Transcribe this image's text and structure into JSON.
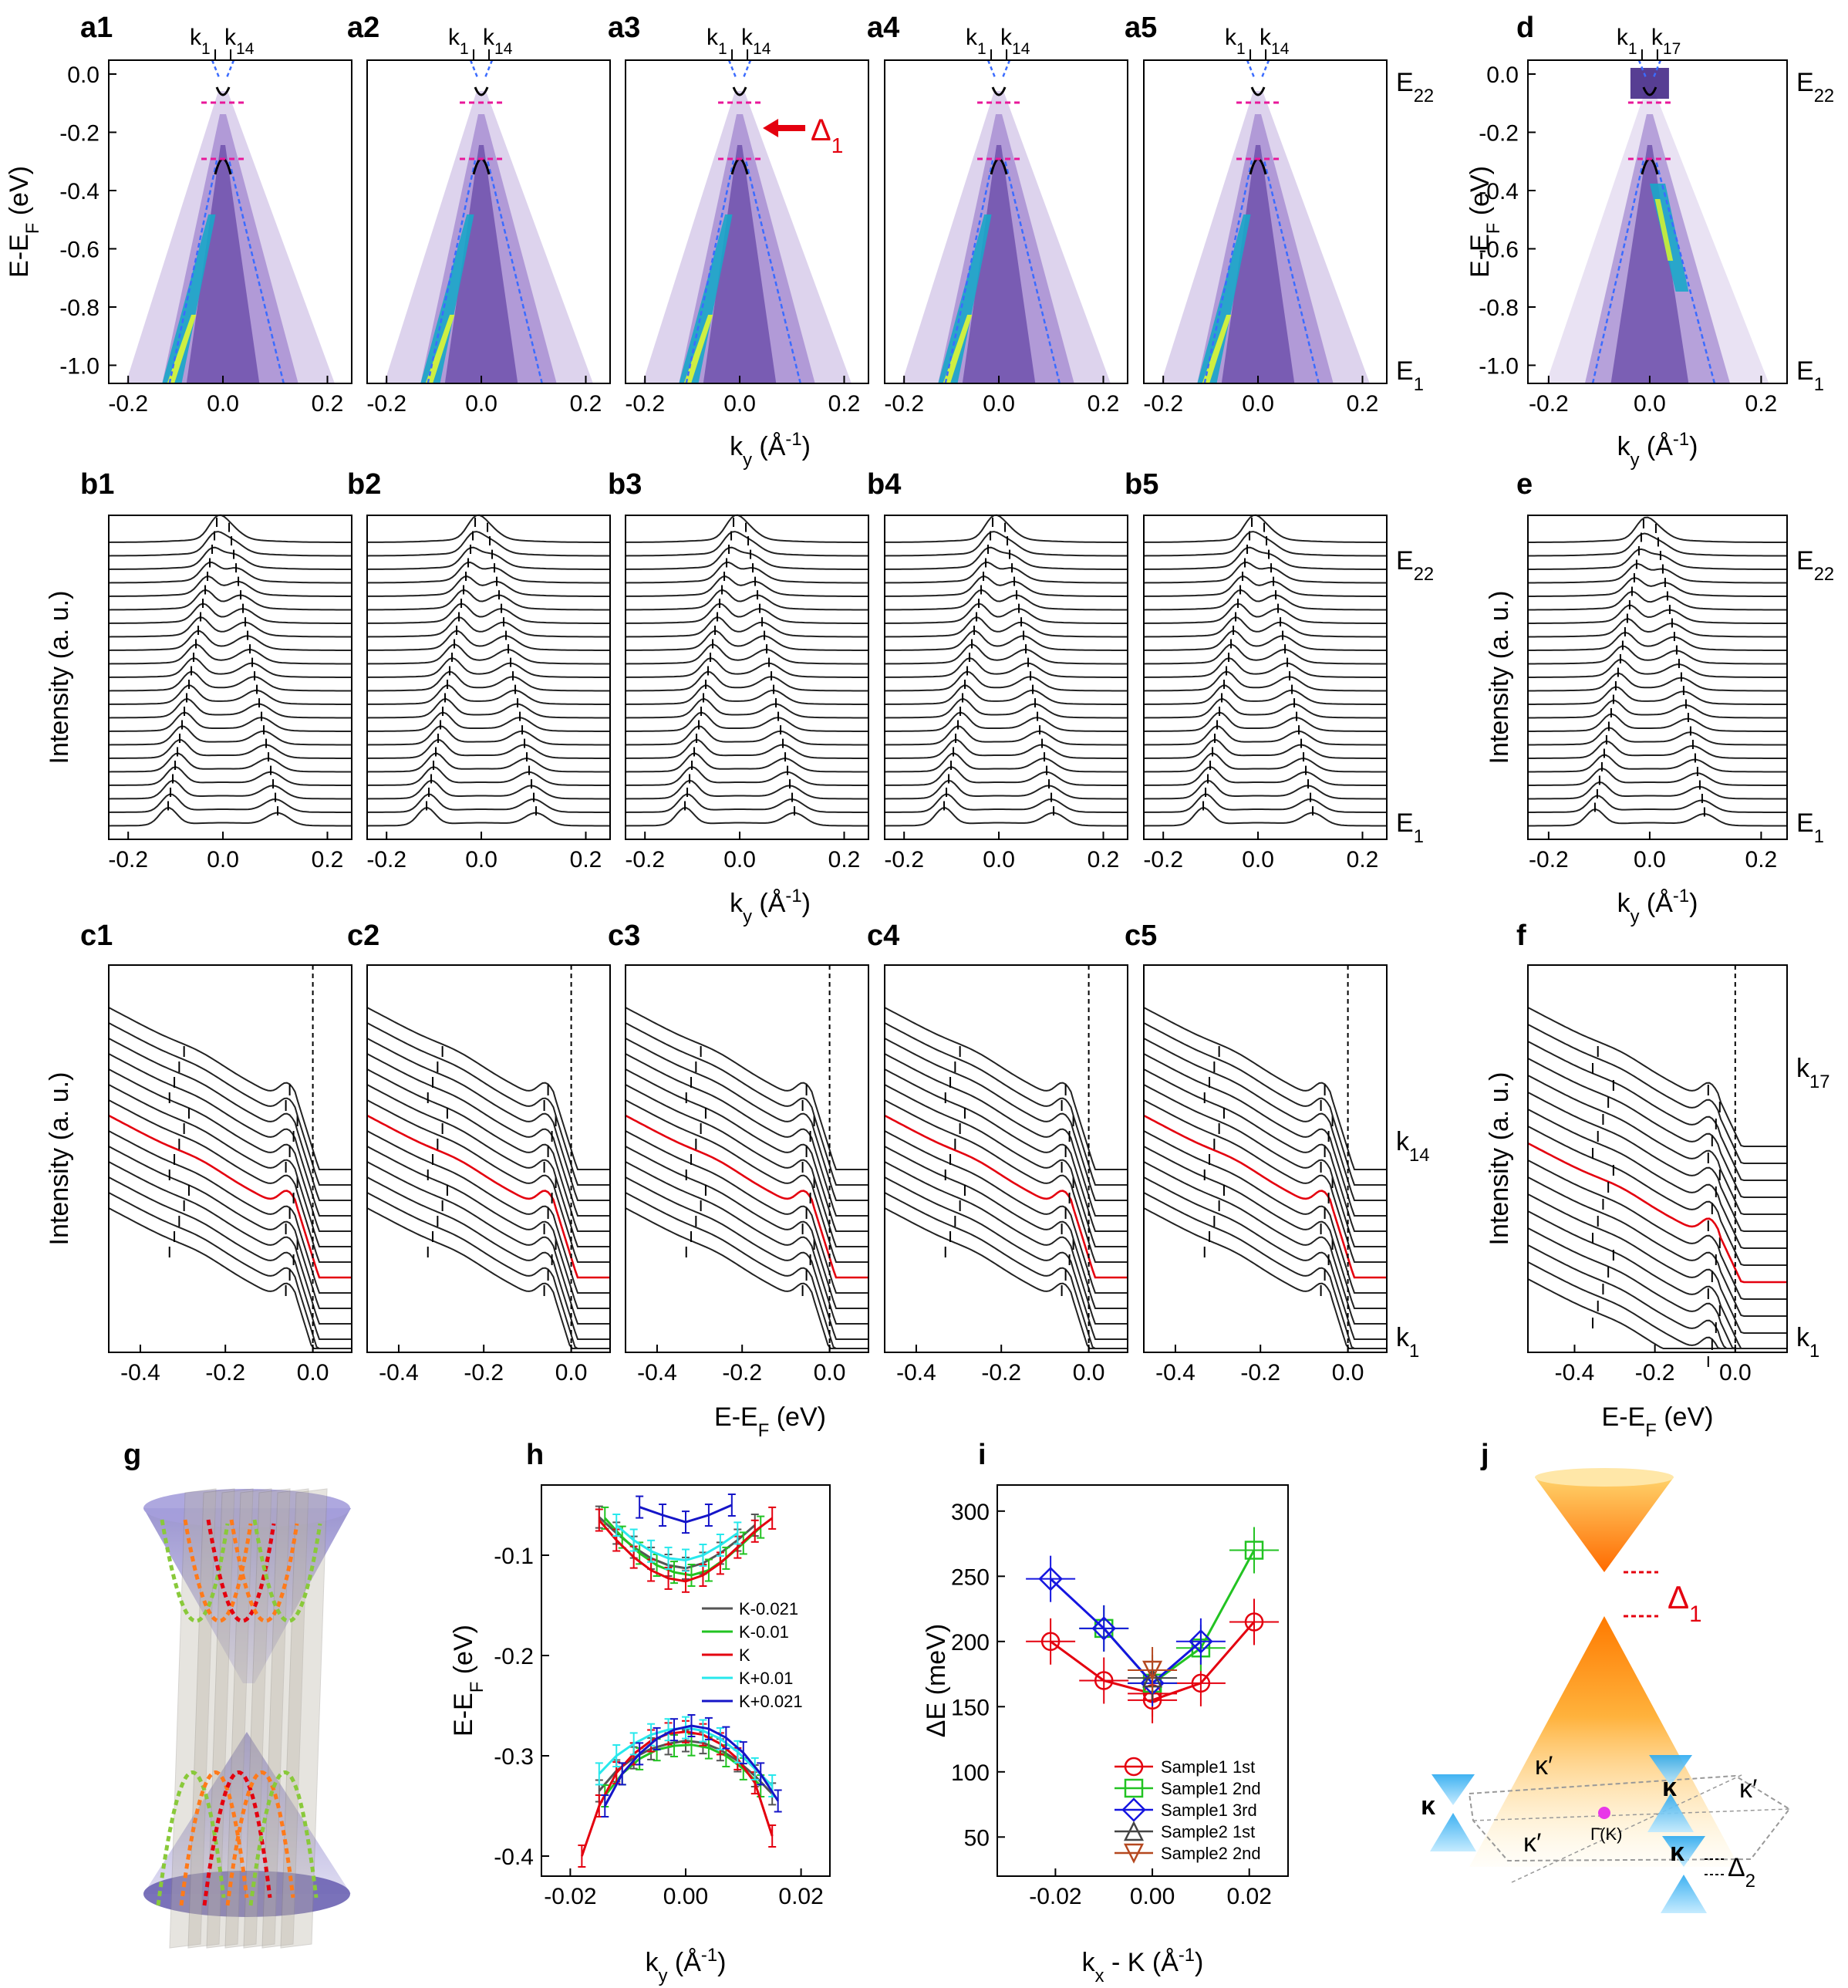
{
  "panel_labels": {
    "a": [
      "a1",
      "a2",
      "a3",
      "a4",
      "a5"
    ],
    "b": [
      "b1",
      "b2",
      "b3",
      "b4",
      "b5"
    ],
    "c": [
      "c1",
      "c2",
      "c3",
      "c4",
      "c5"
    ],
    "d": "d",
    "e": "e",
    "f": "f",
    "g": "g",
    "h": "h",
    "i": "i",
    "j": "j"
  },
  "row_a": {
    "top_markers": [
      "k",
      "1",
      "k",
      "14"
    ],
    "top_markers_d": [
      "k",
      "1",
      "k",
      "17"
    ],
    "ylabel": "E-E",
    "ylabel_sub": "F",
    "ylabel_unit": " (eV)",
    "xlabel": "k",
    "xlabel_sub": "y",
    "xlabel_unit_pre": " (Å",
    "xlabel_unit_sup": "-1",
    "xlabel_unit_post": ")",
    "yticks": [
      "0.0",
      "-0.2",
      "-0.4",
      "-0.6",
      "-0.8",
      "-1.0"
    ],
    "xticks": [
      "-0.2",
      "0.0",
      "0.2"
    ],
    "right_top": "E",
    "right_top_sub": "22",
    "right_bot": "E",
    "right_bot_sub": "1",
    "gap_label": "Δ",
    "gap_label_sub": "1",
    "colors": {
      "cut": "#e8179a",
      "arrow": "#e4000f",
      "band": "#000000",
      "dispersion": "#3b6cff"
    }
  },
  "row_b": {
    "ylabel": "Intensity (a. u.)",
    "xticks": [
      "-0.2",
      "0.0",
      "0.2"
    ],
    "xlabel": "k",
    "xlabel_sub": "y",
    "right_top": "E",
    "right_top_sub": "22",
    "right_bot": "E",
    "right_bot_sub": "1"
  },
  "row_c": {
    "ylabel": "Intensity (a. u.)",
    "xticks": [
      "-0.4",
      "-0.2",
      "0.0"
    ],
    "xticks_f": [
      "-0.4",
      "-0.2",
      "0.0"
    ],
    "xlabel": "E-E",
    "xlabel_sub": "F",
    "xlabel_unit": " (eV)",
    "right_c": [
      "k",
      "14",
      "k",
      "1"
    ],
    "right_f": [
      "k",
      "17",
      "k",
      "1"
    ],
    "highlight_color": "#e4000f"
  },
  "chart_data": [
    {
      "panel": "h",
      "type": "line",
      "title": "",
      "xlabel": "k_y (Å^-1)",
      "ylabel": "E-E_F (eV)",
      "xlim": [
        -0.025,
        0.025
      ],
      "ylim": [
        -0.42,
        -0.03
      ],
      "xticks": [
        "-0.02",
        "0.00",
        "0.02"
      ],
      "yticks": [
        "-0.1",
        "-0.2",
        "-0.3",
        "-0.4"
      ],
      "series": [
        {
          "name": "K-0.021",
          "color": "#555555",
          "upper_x": [
            -0.015,
            -0.012,
            -0.009,
            -0.006,
            -0.003,
            0.0,
            0.003,
            0.006,
            0.009,
            0.012
          ],
          "upper_y": [
            -0.062,
            -0.078,
            -0.092,
            -0.103,
            -0.11,
            -0.113,
            -0.108,
            -0.098,
            -0.085,
            -0.07
          ],
          "lower_x": [
            -0.015,
            -0.012,
            -0.009,
            -0.006,
            -0.003,
            0.0,
            0.003,
            0.006,
            0.009,
            0.012,
            0.015
          ],
          "lower_y": [
            -0.335,
            -0.315,
            -0.302,
            -0.293,
            -0.288,
            -0.285,
            -0.287,
            -0.294,
            -0.305,
            -0.32,
            -0.338
          ]
        },
        {
          "name": "K-0.01",
          "color": "#22c322",
          "upper_x": [
            -0.014,
            -0.011,
            -0.008,
            -0.005,
            -0.002,
            0.001,
            0.004,
            0.007,
            0.01,
            0.013
          ],
          "upper_y": [
            -0.063,
            -0.082,
            -0.098,
            -0.11,
            -0.117,
            -0.12,
            -0.115,
            -0.103,
            -0.088,
            -0.072
          ],
          "lower_x": [
            -0.014,
            -0.011,
            -0.008,
            -0.005,
            -0.002,
            0.001,
            0.004,
            0.007,
            0.01,
            0.013
          ],
          "lower_y": [
            -0.34,
            -0.318,
            -0.303,
            -0.294,
            -0.29,
            -0.289,
            -0.292,
            -0.3,
            -0.313,
            -0.33
          ]
        },
        {
          "name": "K",
          "color": "#e4000f",
          "upper_x": [
            -0.015,
            -0.012,
            -0.009,
            -0.006,
            -0.003,
            0.0,
            0.003,
            0.006,
            0.009,
            0.012,
            0.015
          ],
          "upper_y": [
            -0.065,
            -0.085,
            -0.102,
            -0.115,
            -0.123,
            -0.126,
            -0.12,
            -0.108,
            -0.092,
            -0.076,
            -0.063
          ],
          "lower_x": [
            -0.018,
            -0.015,
            -0.012,
            -0.009,
            -0.006,
            -0.003,
            0.0,
            0.003,
            0.006,
            0.009,
            0.012,
            0.015
          ],
          "lower_y": [
            -0.4,
            -0.35,
            -0.317,
            -0.298,
            -0.285,
            -0.278,
            -0.276,
            -0.279,
            -0.288,
            -0.303,
            -0.327,
            -0.38
          ]
        },
        {
          "name": "K+0.01",
          "color": "#27e8ec",
          "upper_x": [
            -0.012,
            -0.009,
            -0.006,
            -0.003,
            0.0,
            0.003,
            0.006,
            0.009
          ],
          "upper_y": [
            -0.07,
            -0.085,
            -0.096,
            -0.103,
            -0.105,
            -0.1,
            -0.09,
            -0.078
          ],
          "lower_x": [
            -0.015,
            -0.012,
            -0.009,
            -0.006,
            -0.003,
            0.0,
            0.003,
            0.006,
            0.009,
            0.012,
            0.015
          ],
          "lower_y": [
            -0.318,
            -0.3,
            -0.288,
            -0.279,
            -0.274,
            -0.272,
            -0.275,
            -0.283,
            -0.296,
            -0.313,
            -0.33
          ]
        },
        {
          "name": "K+0.021",
          "color": "#1515c8",
          "upper_x": [
            -0.008,
            -0.004,
            0.0,
            0.004,
            0.008
          ],
          "upper_y": [
            -0.052,
            -0.06,
            -0.067,
            -0.06,
            -0.05
          ],
          "lower_x": [
            -0.014,
            -0.011,
            -0.008,
            -0.005,
            -0.002,
            0.001,
            0.004,
            0.007,
            0.01,
            0.013,
            0.016
          ],
          "lower_y": [
            -0.35,
            -0.318,
            -0.298,
            -0.283,
            -0.274,
            -0.27,
            -0.273,
            -0.282,
            -0.297,
            -0.318,
            -0.345
          ]
        }
      ]
    },
    {
      "panel": "i",
      "type": "line",
      "xlabel": "k_x - K (Å^-1)",
      "ylabel": "ΔE (meV)",
      "xlim": [
        -0.032,
        0.028
      ],
      "ylim": [
        20,
        320
      ],
      "xticks": [
        "-0.02",
        "0.00",
        "0.02"
      ],
      "yticks": [
        "50",
        "100",
        "150",
        "200",
        "250",
        "300"
      ],
      "series": [
        {
          "name": "Sample1 1st",
          "color": "#e4000f",
          "marker": "circle",
          "x": [
            -0.021,
            -0.01,
            0.0,
            0.0,
            0.01,
            0.021
          ],
          "y": [
            200,
            170,
            160,
            155,
            168,
            215
          ]
        },
        {
          "name": "Sample1 2nd",
          "color": "#22c322",
          "marker": "square",
          "x": [
            -0.01,
            0.0,
            0.01,
            0.021
          ],
          "y": [
            210,
            168,
            195,
            270
          ]
        },
        {
          "name": "Sample1 3rd",
          "color": "#1515e0",
          "marker": "diamond",
          "x": [
            -0.021,
            -0.01,
            0.0,
            0.01
          ],
          "y": [
            248,
            210,
            168,
            200
          ]
        },
        {
          "name": "Sample2 1st",
          "color": "#444444",
          "marker": "triangle-up",
          "x": [
            0.0
          ],
          "y": [
            172
          ]
        },
        {
          "name": "Sample2 2nd",
          "color": "#b5481f",
          "marker": "triangle-down",
          "x": [
            0.0
          ],
          "y": [
            178
          ]
        }
      ]
    }
  ],
  "panel_j": {
    "gap_label": "Δ",
    "gap_label_sub": "1",
    "gap2_label": "Δ",
    "gap2_label_sub": "2",
    "kappa": "κ",
    "kappa_prime": "κ′",
    "gamma": "Γ̄(K)"
  }
}
